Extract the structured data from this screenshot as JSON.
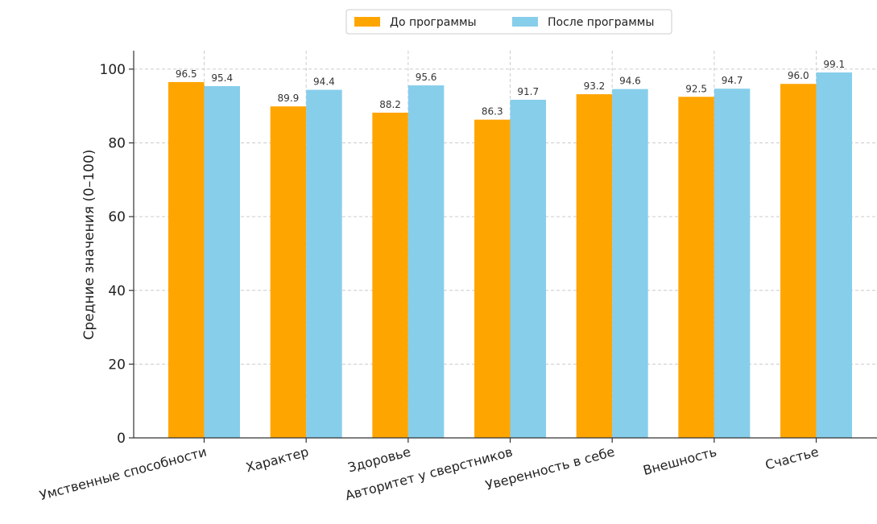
{
  "chart_data": {
    "type": "bar",
    "categories": [
      "Умственные способности",
      "Характер",
      "Здоровье",
      "Авторитет у сверстников",
      "Уверенность в себе",
      "Внешность",
      "Счастье"
    ],
    "series": [
      {
        "name": "До программы",
        "values": [
          96.5,
          89.9,
          88.2,
          86.3,
          93.2,
          92.5,
          96.0
        ],
        "color": "#FFA500"
      },
      {
        "name": "После программы",
        "values": [
          95.4,
          94.4,
          95.6,
          91.7,
          94.6,
          94.7,
          99.1
        ],
        "color": "#87CEEB"
      }
    ],
    "title": "",
    "xlabel": "",
    "ylabel": "Средние значения (0–100)",
    "ylim": [
      0,
      105
    ],
    "yticks": [
      0,
      20,
      40,
      60,
      80,
      100
    ],
    "grid": true,
    "legend_position": "top-center"
  }
}
